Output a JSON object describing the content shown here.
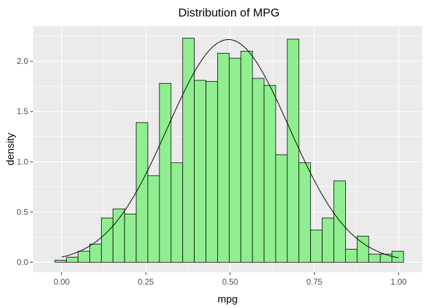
{
  "chart_data": {
    "type": "bar",
    "title": "Distribution of MPG",
    "xlabel": "mpg",
    "ylabel": "density",
    "xlim": [
      -0.085,
      1.07
    ],
    "ylim": [
      -0.1,
      2.35
    ],
    "x_ticks": [
      {
        "value": 0.0,
        "label": "0.00"
      },
      {
        "value": 0.25,
        "label": "0.25"
      },
      {
        "value": 0.5,
        "label": "0.50"
      },
      {
        "value": 0.75,
        "label": "0.75"
      },
      {
        "value": 1.0,
        "label": "1.00"
      }
    ],
    "y_ticks": [
      {
        "value": 0.0,
        "label": "0.0"
      },
      {
        "value": 0.5,
        "label": "0.5"
      },
      {
        "value": 1.0,
        "label": "1.0"
      },
      {
        "value": 1.5,
        "label": "1.5"
      },
      {
        "value": 2.0,
        "label": "2.0"
      }
    ],
    "bin_width": 0.0345,
    "bin_centers": [
      -0.003,
      0.0315,
      0.066,
      0.1005,
      0.135,
      0.1695,
      0.204,
      0.2385,
      0.273,
      0.3075,
      0.342,
      0.3765,
      0.411,
      0.4455,
      0.48,
      0.5145,
      0.549,
      0.5835,
      0.618,
      0.6525,
      0.687,
      0.7215,
      0.756,
      0.7905,
      0.825,
      0.8595,
      0.894,
      0.9285,
      0.963,
      0.9975
    ],
    "values": [
      0.02,
      0.05,
      0.11,
      0.18,
      0.44,
      0.53,
      0.48,
      1.39,
      0.86,
      1.78,
      0.99,
      2.23,
      1.81,
      1.8,
      2.08,
      2.03,
      2.1,
      1.83,
      1.76,
      1.07,
      2.22,
      0.99,
      0.32,
      0.44,
      0.81,
      0.13,
      0.26,
      0.08,
      0.08,
      0.11
    ],
    "density_curve": {
      "mean": 0.495,
      "sd": 0.18,
      "x_range": [
        0.0,
        1.0
      ]
    },
    "colors": {
      "bar_fill": "#90EE90",
      "bar_outline": "#000000",
      "panel_background": "#EBEBEB",
      "grid": "#FFFFFF",
      "curve": "#000000"
    },
    "grid": true,
    "legend": "none"
  }
}
